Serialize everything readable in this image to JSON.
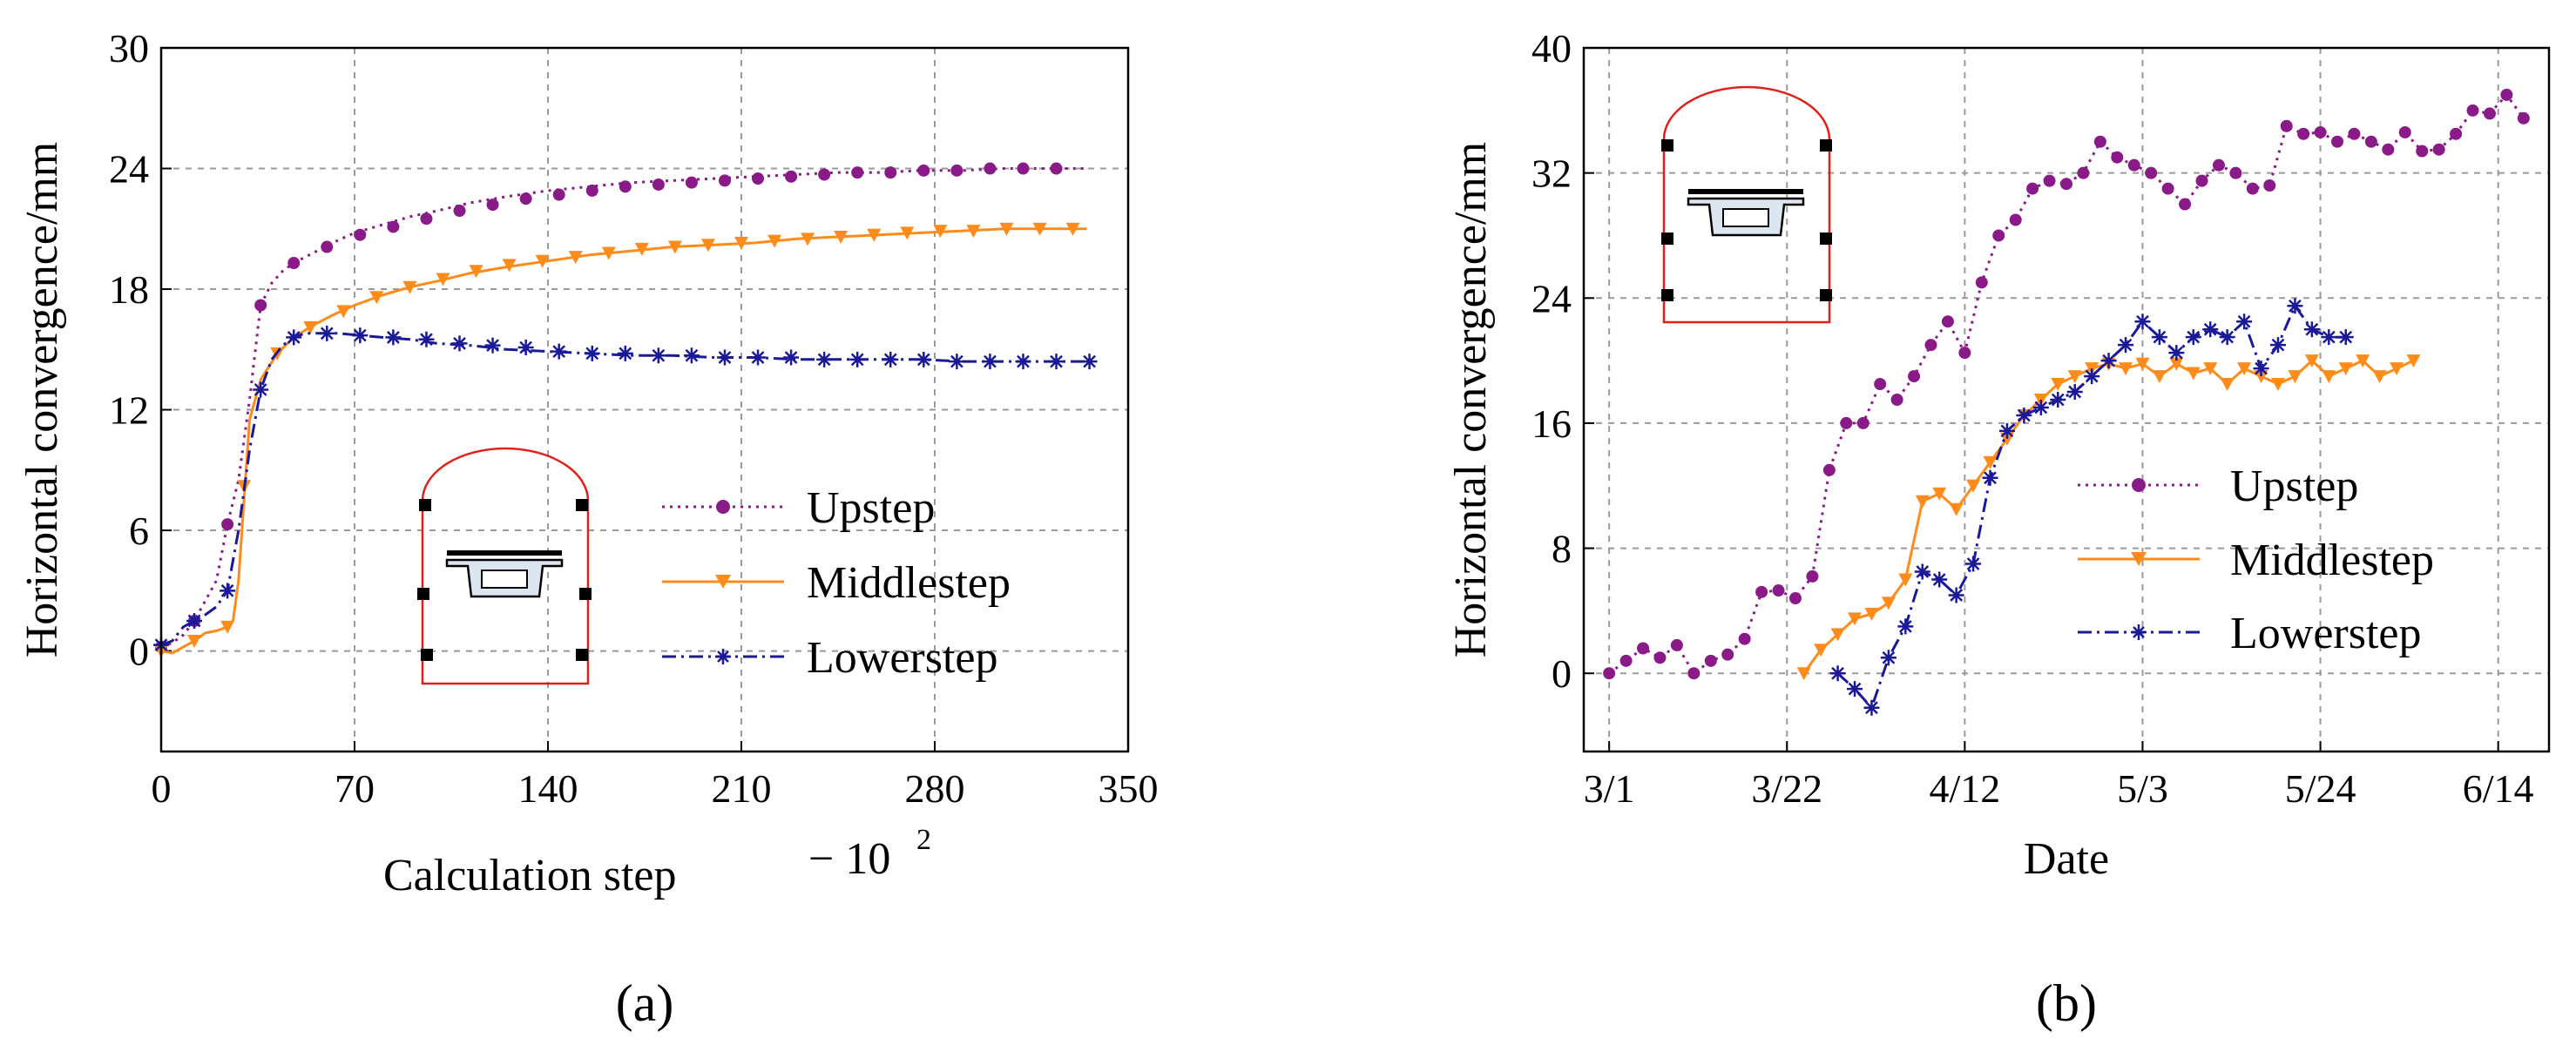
{
  "chart_data": [
    {
      "type": "line",
      "panel_label": "(a)",
      "xlabel": "Calculation step",
      "xlabel_multiplier_base": "− 10",
      "xlabel_multiplier_exp": "2",
      "ylabel": "Horizontal convergence/mm",
      "xlim": [
        0,
        350
      ],
      "ylim": [
        -5,
        30
      ],
      "xticks": [
        0,
        70,
        140,
        210,
        280,
        350
      ],
      "yticks": [
        0,
        6,
        12,
        18,
        24,
        30
      ],
      "grid": true,
      "legend_position": "bottom-right",
      "series": [
        {
          "name": "Upstep",
          "color": "#8b1a89",
          "linestyle": "dotted",
          "marker": "circle",
          "x": [
            0,
            4,
            8,
            12,
            16,
            20,
            24,
            28,
            32,
            36,
            40,
            44,
            48,
            55,
            62,
            70,
            80,
            90,
            100,
            112,
            125,
            140,
            155,
            170,
            185,
            200,
            215,
            230,
            245,
            260,
            275,
            290,
            305,
            320,
            335
          ],
          "y": [
            0.2,
            0.4,
            0.8,
            1.5,
            2.5,
            3.5,
            6.3,
            8.5,
            12.5,
            17.2,
            18.3,
            18.9,
            19.3,
            19.8,
            20.3,
            20.8,
            21.2,
            21.6,
            21.9,
            22.3,
            22.6,
            22.9,
            23.1,
            23.3,
            23.4,
            23.5,
            23.6,
            23.7,
            23.8,
            23.8,
            23.9,
            23.9,
            24.0,
            24.0,
            24.0
          ],
          "markers_x": [
            0,
            12,
            24,
            36,
            48,
            60,
            72,
            84,
            96,
            108,
            120,
            132,
            144,
            156,
            168,
            180,
            192,
            204,
            216,
            228,
            240,
            252,
            264,
            276,
            288,
            300,
            312,
            324
          ],
          "markers_y": [
            0.2,
            1.5,
            6.3,
            17.2,
            19.3,
            20.1,
            20.7,
            21.1,
            21.5,
            21.9,
            22.2,
            22.5,
            22.7,
            22.9,
            23.1,
            23.2,
            23.3,
            23.4,
            23.5,
            23.6,
            23.7,
            23.8,
            23.8,
            23.9,
            23.9,
            24.0,
            24.0,
            24.0
          ]
        },
        {
          "name": "Middlestep",
          "color": "#ff8c1a",
          "linestyle": "solid",
          "marker": "triangle-down",
          "x": [
            0,
            4,
            8,
            12,
            16,
            20,
            24,
            26,
            28,
            30,
            32,
            36,
            42,
            48,
            55,
            62,
            70,
            80,
            90,
            100,
            112,
            125,
            140,
            155,
            170,
            185,
            200,
            215,
            230,
            245,
            260,
            275,
            290,
            305,
            320,
            335
          ],
          "y": [
            0,
            -0.1,
            0.2,
            0.5,
            0.9,
            1.0,
            1.2,
            1.5,
            3.5,
            7.5,
            11.5,
            13.5,
            14.8,
            15.6,
            16.2,
            16.7,
            17.2,
            17.7,
            18.1,
            18.4,
            18.8,
            19.1,
            19.4,
            19.7,
            19.9,
            20.1,
            20.2,
            20.3,
            20.5,
            20.6,
            20.7,
            20.8,
            20.9,
            21.0,
            21.0,
            21.0
          ],
          "markers_x": [
            0,
            12,
            24,
            30,
            42,
            54,
            66,
            78,
            90,
            102,
            114,
            126,
            138,
            150,
            162,
            174,
            186,
            198,
            210,
            222,
            234,
            246,
            258,
            270,
            282,
            294,
            306,
            318,
            330
          ],
          "markers_y": [
            0,
            0.5,
            1.2,
            8.2,
            14.8,
            16.1,
            16.9,
            17.6,
            18.1,
            18.5,
            18.9,
            19.2,
            19.4,
            19.6,
            19.8,
            20.0,
            20.1,
            20.2,
            20.3,
            20.4,
            20.5,
            20.6,
            20.7,
            20.8,
            20.9,
            20.9,
            21.0,
            21.0,
            21.0
          ]
        },
        {
          "name": "Lowerstep",
          "color": "#1a1a99",
          "linestyle": "dashdot",
          "marker": "asterisk",
          "x": [
            0,
            4,
            8,
            12,
            16,
            20,
            24,
            28,
            32,
            36,
            40,
            44,
            48,
            52,
            58,
            64,
            72,
            80,
            90,
            100,
            112,
            125,
            140,
            155,
            170,
            185,
            200,
            215,
            230,
            245,
            260,
            275,
            290,
            305,
            320,
            335
          ],
          "y": [
            0.3,
            0.5,
            1.2,
            1.5,
            1.8,
            2.2,
            3.0,
            6.0,
            10.0,
            13.0,
            14.5,
            15.2,
            15.6,
            15.8,
            15.8,
            15.8,
            15.7,
            15.6,
            15.5,
            15.3,
            15.2,
            15.0,
            14.9,
            14.8,
            14.7,
            14.7,
            14.6,
            14.6,
            14.5,
            14.5,
            14.5,
            14.5,
            14.4,
            14.4,
            14.4,
            14.4
          ],
          "markers_x": [
            0,
            12,
            24,
            36,
            48,
            60,
            72,
            84,
            96,
            108,
            120,
            132,
            144,
            156,
            168,
            180,
            192,
            204,
            216,
            228,
            240,
            252,
            264,
            276,
            288,
            300,
            312,
            324,
            336
          ],
          "markers_y": [
            0.3,
            1.5,
            3.0,
            13.0,
            15.6,
            15.8,
            15.7,
            15.6,
            15.5,
            15.3,
            15.2,
            15.1,
            14.9,
            14.8,
            14.8,
            14.7,
            14.7,
            14.6,
            14.6,
            14.6,
            14.5,
            14.5,
            14.5,
            14.5,
            14.4,
            14.4,
            14.4,
            14.4,
            14.4
          ]
        }
      ]
    },
    {
      "type": "line",
      "panel_label": "(b)",
      "xlabel": "Date",
      "ylabel": "Horizontal convergence/mm",
      "xlim": [
        -3,
        111
      ],
      "ylim": [
        -5,
        40
      ],
      "xticks": [
        0,
        21,
        42,
        63,
        84,
        105
      ],
      "xtick_labels": [
        "3/1",
        "3/22",
        "4/12",
        "5/3",
        "5/24",
        "6/14"
      ],
      "yticks": [
        0,
        8,
        16,
        24,
        32,
        40
      ],
      "grid": true,
      "legend_position": "middle-right",
      "series": [
        {
          "name": "Upstep",
          "color": "#8b1a89",
          "linestyle": "dotted",
          "marker": "circle",
          "x": [
            0,
            2,
            4,
            6,
            8,
            10,
            12,
            14,
            16,
            18,
            20,
            22,
            24,
            26,
            28,
            30,
            32,
            34,
            36,
            38,
            40,
            42,
            44,
            46,
            48,
            50,
            52,
            54,
            56,
            58,
            60,
            62,
            64,
            66,
            68,
            70,
            72,
            74,
            76,
            78,
            80,
            82,
            84,
            86,
            88,
            90,
            92,
            94,
            96,
            98,
            100,
            102,
            104,
            106,
            108
          ],
          "y": [
            0,
            0.8,
            1.6,
            1.0,
            1.8,
            0,
            0.8,
            1.2,
            2.2,
            5.2,
            5.3,
            4.8,
            6.2,
            13.0,
            16.0,
            16.0,
            18.5,
            17.5,
            19.0,
            21.0,
            22.5,
            20.5,
            25.0,
            28.0,
            29.0,
            31.0,
            31.5,
            31.3,
            32.0,
            34.0,
            33.0,
            32.5,
            32.0,
            31.0,
            30.0,
            31.5,
            32.5,
            32.0,
            31.0,
            31.2,
            35.0,
            34.5,
            34.6,
            34.0,
            34.5,
            34.0,
            33.5,
            34.6,
            33.4,
            33.5,
            34.5,
            36.0,
            35.8,
            37.0,
            35.5
          ],
          "markers_x": [
            0,
            2,
            4,
            6,
            8,
            10,
            12,
            14,
            16,
            18,
            20,
            22,
            24,
            26,
            28,
            30,
            32,
            34,
            36,
            38,
            40,
            42,
            44,
            46,
            48,
            50,
            52,
            54,
            56,
            58,
            60,
            62,
            64,
            66,
            68,
            70,
            72,
            74,
            76,
            78,
            80,
            82,
            84,
            86,
            88,
            90,
            92,
            94,
            96,
            98,
            100,
            102,
            104,
            106,
            108
          ],
          "markers_y": [
            0,
            0.8,
            1.6,
            1.0,
            1.8,
            0,
            0.8,
            1.2,
            2.2,
            5.2,
            5.3,
            4.8,
            6.2,
            13.0,
            16.0,
            16.0,
            18.5,
            17.5,
            19.0,
            21.0,
            22.5,
            20.5,
            25.0,
            28.0,
            29.0,
            31.0,
            31.5,
            31.3,
            32.0,
            34.0,
            33.0,
            32.5,
            32.0,
            31.0,
            30.0,
            31.5,
            32.5,
            32.0,
            31.0,
            31.2,
            35.0,
            34.5,
            34.6,
            34.0,
            34.5,
            34.0,
            33.5,
            34.6,
            33.4,
            33.5,
            34.5,
            36.0,
            35.8,
            37.0,
            35.5
          ]
        },
        {
          "name": "Middlestep",
          "color": "#ff8c1a",
          "linestyle": "solid",
          "marker": "triangle-down",
          "x": [
            23,
            25,
            27,
            29,
            31,
            33,
            35,
            37,
            39,
            41,
            43,
            45,
            47,
            49,
            51,
            53,
            55,
            57,
            59,
            61,
            63,
            65,
            67,
            69,
            71,
            73,
            75,
            77,
            79,
            81,
            83,
            85,
            87,
            89,
            91,
            93,
            95
          ],
          "y": [
            0,
            1.5,
            2.5,
            3.5,
            3.8,
            4.5,
            6.0,
            11.0,
            11.5,
            10.5,
            12.0,
            13.5,
            15.0,
            16.5,
            17.5,
            18.5,
            19.0,
            19.5,
            19.8,
            19.5,
            19.8,
            19.0,
            19.8,
            19.2,
            19.5,
            18.5,
            19.5,
            19.0,
            18.5,
            19.0,
            20.0,
            19.0,
            19.5,
            20.0,
            19.0,
            19.5,
            20.0
          ],
          "markers_x": [
            23,
            25,
            27,
            29,
            31,
            33,
            35,
            37,
            39,
            41,
            43,
            45,
            47,
            49,
            51,
            53,
            55,
            57,
            59,
            61,
            63,
            65,
            67,
            69,
            71,
            73,
            75,
            77,
            79,
            81,
            83,
            85,
            87,
            89,
            91,
            93,
            95
          ],
          "markers_y": [
            0,
            1.5,
            2.5,
            3.5,
            3.8,
            4.5,
            6.0,
            11.0,
            11.5,
            10.5,
            12.0,
            13.5,
            15.0,
            16.5,
            17.5,
            18.5,
            19.0,
            19.5,
            19.8,
            19.5,
            19.8,
            19.0,
            19.8,
            19.2,
            19.5,
            18.5,
            19.5,
            19.0,
            18.5,
            19.0,
            20.0,
            19.0,
            19.5,
            20.0,
            19.0,
            19.5,
            20.0
          ]
        },
        {
          "name": "Lowerstep",
          "color": "#1a1a99",
          "linestyle": "dashdot",
          "marker": "asterisk",
          "x": [
            27,
            29,
            31,
            33,
            35,
            37,
            39,
            41,
            43,
            45,
            47,
            49,
            51,
            53,
            55,
            57,
            59,
            61,
            63,
            65,
            67,
            69,
            71,
            73,
            75,
            77,
            79,
            81,
            83,
            85,
            87
          ],
          "y": [
            0,
            -1.0,
            -2.2,
            1.0,
            3.0,
            6.5,
            6.0,
            5.0,
            7.0,
            12.5,
            15.5,
            16.5,
            17.0,
            17.5,
            18.0,
            19.0,
            20.0,
            21.0,
            22.5,
            21.5,
            20.5,
            21.5,
            22.0,
            21.5,
            22.5,
            19.5,
            21.0,
            23.5,
            22.0,
            21.5,
            21.5
          ],
          "markers_x": [
            27,
            29,
            31,
            33,
            35,
            37,
            39,
            41,
            43,
            45,
            47,
            49,
            51,
            53,
            55,
            57,
            59,
            61,
            63,
            65,
            67,
            69,
            71,
            73,
            75,
            77,
            79,
            81,
            83,
            85,
            87
          ],
          "markers_y": [
            0,
            -1.0,
            -2.2,
            1.0,
            3.0,
            6.5,
            6.0,
            5.0,
            7.0,
            12.5,
            15.5,
            16.5,
            17.0,
            17.5,
            18.0,
            19.0,
            20.0,
            21.0,
            22.5,
            21.5,
            20.5,
            21.5,
            22.0,
            21.5,
            22.5,
            19.5,
            21.0,
            23.5,
            22.0,
            21.5,
            21.5
          ]
        }
      ]
    }
  ]
}
